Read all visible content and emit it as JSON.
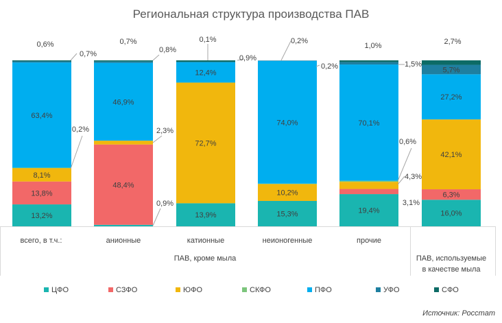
{
  "chart_data": {
    "type": "bar",
    "stacked": true,
    "percent": true,
    "title": "Региональная структура производства ПАВ",
    "source": "Источник: Росстат",
    "categories": [
      "всего, в т.ч.:",
      "анионные",
      "катионные",
      "неионогенные",
      "прочие",
      "ПАВ, используемые в качестве мыла"
    ],
    "group_label": "ПАВ, кроме мыла",
    "series": [
      {
        "name": "ЦФО",
        "color": "#1ab5b0",
        "values": [
          13.2,
          0.9,
          13.9,
          15.3,
          19.4,
          16.0
        ],
        "labels": [
          "13,2%",
          "0,9%",
          "13,9%",
          "15,3%",
          "19,4%",
          "16,0%"
        ]
      },
      {
        "name": "СЗФО",
        "color": "#f26868",
        "values": [
          13.8,
          48.4,
          0,
          0,
          3.1,
          6.3
        ],
        "labels": [
          "13,8%",
          "48,4%",
          "",
          "",
          "3,1%",
          "6,3%"
        ]
      },
      {
        "name": "ЮФО",
        "color": "#f1b70d",
        "values": [
          8.1,
          2.3,
          72.7,
          10.2,
          4.3,
          42.1
        ],
        "labels": [
          "8,1%",
          "2,3%",
          "72,7%",
          "10,2%",
          "4,3%",
          "42,1%"
        ]
      },
      {
        "name": "СКФО",
        "color": "#7cc57c",
        "values": [
          0.2,
          0,
          0,
          0.2,
          0.6,
          0
        ],
        "labels": [
          "0,2%",
          "",
          "",
          "0,2%",
          "0,6%",
          ""
        ]
      },
      {
        "name": "ПФО",
        "color": "#00aeef",
        "values": [
          63.4,
          46.9,
          12.4,
          74.0,
          70.1,
          27.2
        ],
        "labels": [
          "63,4%",
          "46,9%",
          "12,4%",
          "74,0%",
          "70,1%",
          "27,2%"
        ]
      },
      {
        "name": "УФО",
        "color": "#1e7fa0",
        "values": [
          0.7,
          0.8,
          0.1,
          0.2,
          1.5,
          5.7
        ],
        "labels": [
          "0,7%",
          "0,8%",
          "0,1%",
          "0,2%",
          "1,5%",
          "5,7%"
        ]
      },
      {
        "name": "СФО",
        "color": "#0d6b66",
        "values": [
          0.6,
          0.7,
          0.9,
          0,
          1.0,
          2.7
        ],
        "labels": [
          "0,6%",
          "0,7%",
          "0,9%",
          "",
          "1,0%",
          "2,7%"
        ]
      }
    ],
    "ylim": [
      0,
      100
    ],
    "legend_position": "bottom",
    "grid": false
  }
}
